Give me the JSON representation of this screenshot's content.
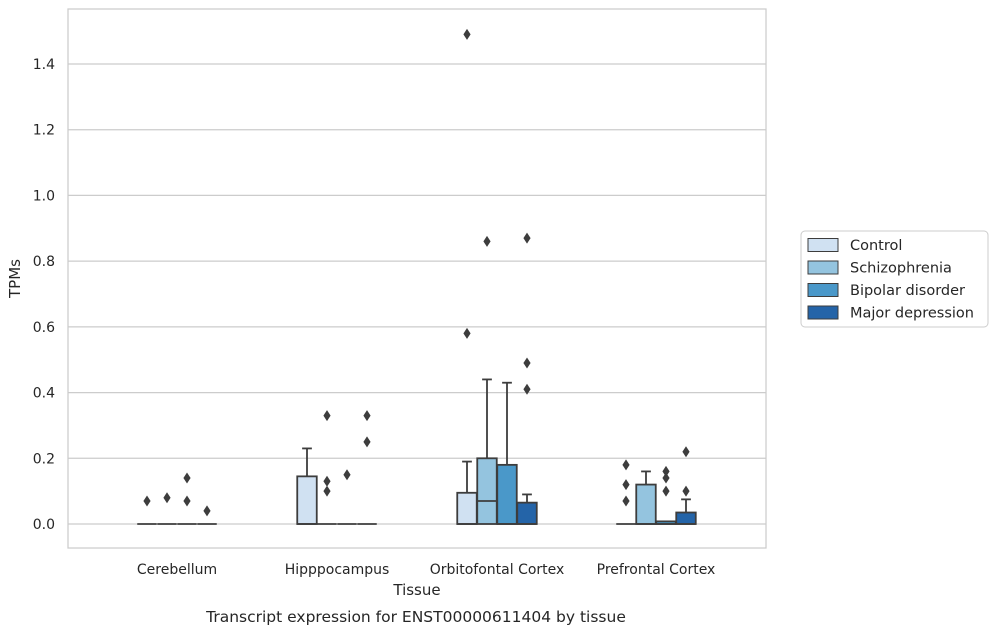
{
  "chart_data": {
    "type": "box",
    "title": "",
    "caption": "Transcript expression for ENST00000611404 by tissue",
    "xlabel": "Tissue",
    "ylabel": "TPMs",
    "ylim": [
      -0.07,
      1.55
    ],
    "y_ticks": [
      "0.0",
      "0.2",
      "0.4",
      "0.6",
      "0.8",
      "1.0",
      "1.2",
      "1.4"
    ],
    "grid": "horizontal",
    "legend_position": "right",
    "categories": [
      "Cerebellum",
      "Hipppocampus",
      "Orbitofontal Cortex",
      "Prefrontal Cortex"
    ],
    "series": [
      {
        "name": "Control",
        "color": "#d0e1f2",
        "boxes": [
          {
            "q1": 0.0,
            "median": 0.0,
            "q3": 0.0,
            "whisker_low": 0.0,
            "whisker_high": 0.0,
            "outliers": [
              0.07
            ]
          },
          {
            "q1": 0.0,
            "median": 0.0,
            "q3": 0.145,
            "whisker_low": 0.0,
            "whisker_high": 0.23,
            "outliers": []
          },
          {
            "q1": 0.0,
            "median": 0.0,
            "q3": 0.095,
            "whisker_low": 0.0,
            "whisker_high": 0.19,
            "outliers": [
              0.58,
              1.49
            ]
          },
          {
            "q1": 0.0,
            "median": 0.0,
            "q3": 0.0,
            "whisker_low": 0.0,
            "whisker_high": 0.0,
            "outliers": [
              0.07,
              0.12,
              0.18
            ]
          }
        ]
      },
      {
        "name": "Schizophrenia",
        "color": "#94c4df",
        "boxes": [
          {
            "q1": 0.0,
            "median": 0.0,
            "q3": 0.0,
            "whisker_low": 0.0,
            "whisker_high": 0.0,
            "outliers": [
              0.08
            ]
          },
          {
            "q1": 0.0,
            "median": 0.0,
            "q3": 0.0,
            "whisker_low": 0.0,
            "whisker_high": 0.0,
            "outliers": [
              0.1,
              0.13,
              0.33
            ]
          },
          {
            "q1": 0.0,
            "median": 0.07,
            "q3": 0.2,
            "whisker_low": 0.0,
            "whisker_high": 0.44,
            "outliers": [
              0.86
            ]
          },
          {
            "q1": 0.0,
            "median": 0.0,
            "q3": 0.12,
            "whisker_low": 0.0,
            "whisker_high": 0.16,
            "outliers": []
          }
        ]
      },
      {
        "name": "Bipolar disorder",
        "color": "#4a98c9",
        "boxes": [
          {
            "q1": 0.0,
            "median": 0.0,
            "q3": 0.0,
            "whisker_low": 0.0,
            "whisker_high": 0.0,
            "outliers": [
              0.07,
              0.14
            ]
          },
          {
            "q1": 0.0,
            "median": 0.0,
            "q3": 0.0,
            "whisker_low": 0.0,
            "whisker_high": 0.0,
            "outliers": [
              0.15
            ]
          },
          {
            "q1": 0.0,
            "median": 0.0,
            "q3": 0.18,
            "whisker_low": 0.0,
            "whisker_high": 0.43,
            "outliers": []
          },
          {
            "q1": 0.0,
            "median": 0.0,
            "q3": 0.008,
            "whisker_low": 0.0,
            "whisker_high": 0.008,
            "outliers": [
              0.1,
              0.14,
              0.16
            ]
          }
        ]
      },
      {
        "name": "Major depression",
        "color": "#2464a8",
        "boxes": [
          {
            "q1": 0.0,
            "median": 0.0,
            "q3": 0.0,
            "whisker_low": 0.0,
            "whisker_high": 0.0,
            "outliers": [
              0.04
            ]
          },
          {
            "q1": 0.0,
            "median": 0.0,
            "q3": 0.0,
            "whisker_low": 0.0,
            "whisker_high": 0.0,
            "outliers": [
              0.25,
              0.33
            ]
          },
          {
            "q1": 0.0,
            "median": 0.0,
            "q3": 0.065,
            "whisker_low": 0.0,
            "whisker_high": 0.09,
            "outliers": [
              0.41,
              0.49,
              0.87
            ]
          },
          {
            "q1": 0.0,
            "median": 0.0,
            "q3": 0.035,
            "whisker_low": 0.0,
            "whisker_high": 0.075,
            "outliers": [
              0.1,
              0.22
            ]
          }
        ]
      }
    ]
  }
}
